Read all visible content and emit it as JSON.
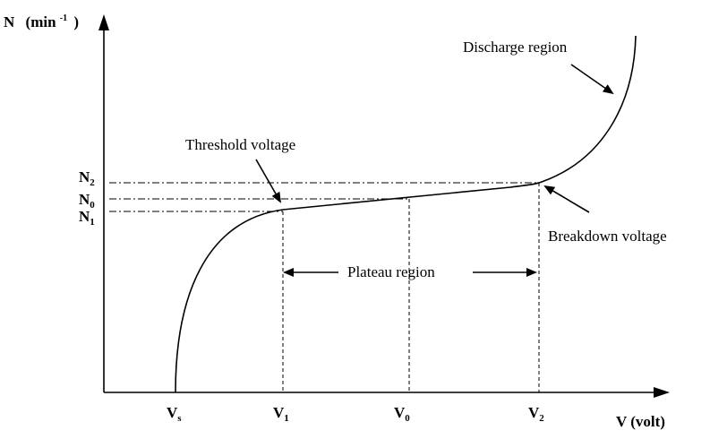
{
  "y_axis": {
    "label": "N",
    "unit_open": "(min",
    "unit_sup": "-1",
    "unit_close": ")"
  },
  "x_axis": {
    "label": "V (volt)"
  },
  "x_ticks": [
    {
      "main": "V",
      "sub": "s"
    },
    {
      "main": "V",
      "sub": "1"
    },
    {
      "main": "V",
      "sub": "0"
    },
    {
      "main": "V",
      "sub": "2"
    }
  ],
  "y_ticks": [
    {
      "main": "N",
      "sub": "2"
    },
    {
      "main": "N",
      "sub": "0"
    },
    {
      "main": "N",
      "sub": "1"
    }
  ],
  "annotations": {
    "threshold": "Threshold voltage",
    "discharge": "Discharge region",
    "breakdown": "Breakdown voltage",
    "plateau": "Plateau region"
  }
}
